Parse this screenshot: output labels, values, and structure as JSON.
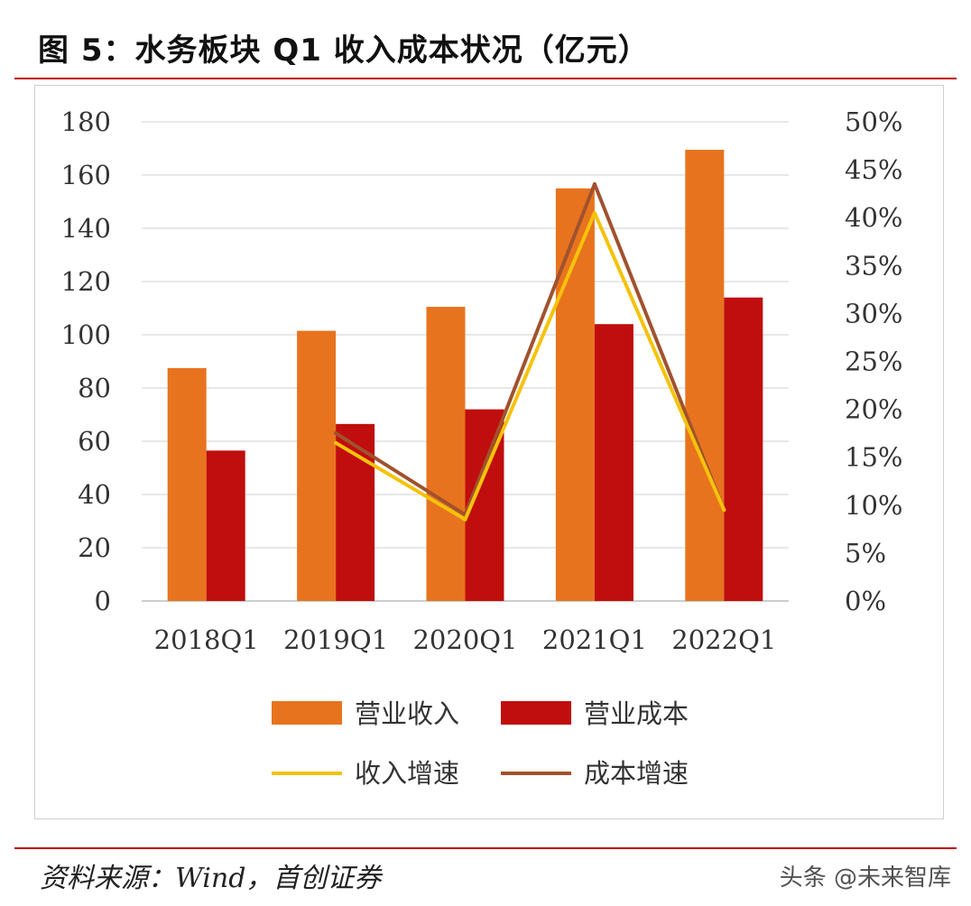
{
  "figure": {
    "title": "图 5：水务板块 Q1 收入成本状况（亿元）",
    "source": "资料来源：Wind，首创证券",
    "watermark": "头条 @未来智库"
  },
  "colors": {
    "revenue_bar": "#e8731e",
    "cost_bar": "#c00d0d",
    "revenue_growth_line": "#f5c20b",
    "cost_growth_line": "#a0522d",
    "rule": "#c00000",
    "grid": "#d9d9d9"
  },
  "chart_data": {
    "type": "bar",
    "categories": [
      "2018Q1",
      "2019Q1",
      "2020Q1",
      "2021Q1",
      "2022Q1"
    ],
    "series": [
      {
        "name": "营业收入",
        "type": "bar",
        "axis": "left",
        "values": [
          87.5,
          101.5,
          110.5,
          155,
          169.5
        ]
      },
      {
        "name": "营业成本",
        "type": "bar",
        "axis": "left",
        "values": [
          56.5,
          66.5,
          72,
          104,
          114
        ]
      },
      {
        "name": "收入增速",
        "type": "line",
        "axis": "right",
        "values": [
          null,
          16.5,
          8.5,
          40.5,
          9.5
        ]
      },
      {
        "name": "成本增速",
        "type": "line",
        "axis": "right",
        "values": [
          null,
          17.5,
          9,
          43.5,
          9.5
        ]
      }
    ],
    "left_axis": {
      "min": 0,
      "max": 180,
      "ticks": [
        "0",
        "20",
        "40",
        "60",
        "80",
        "100",
        "120",
        "140",
        "160",
        "180"
      ]
    },
    "right_axis": {
      "min": 0,
      "max": 50,
      "ticks": [
        "0%",
        "5%",
        "10%",
        "15%",
        "20%",
        "25%",
        "30%",
        "35%",
        "40%",
        "45%",
        "50%"
      ]
    },
    "grid": true,
    "legend_position": "bottom"
  }
}
